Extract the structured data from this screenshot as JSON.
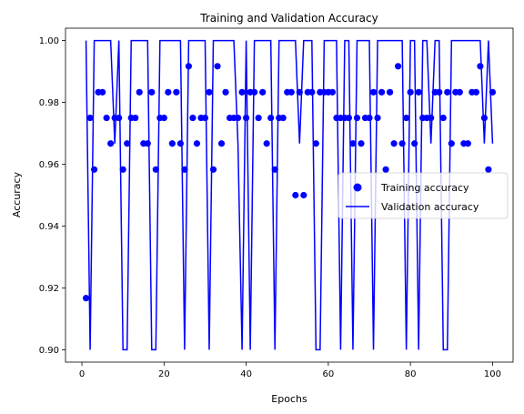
{
  "chart_data": {
    "type": "line",
    "title": "Training and Validation Accuracy",
    "xlabel": "Epochs",
    "ylabel": "Accuracy",
    "xlim": [
      -4,
      105
    ],
    "ylim": [
      0.896,
      1.004
    ],
    "xticks": [
      0,
      20,
      40,
      60,
      80,
      100
    ],
    "yticks": [
      0.9,
      0.92,
      0.94,
      0.96,
      0.98,
      1.0
    ],
    "ytick_labels": [
      "0.90",
      "0.92",
      "0.94",
      "0.96",
      "0.98",
      "1.00"
    ],
    "grid": false,
    "legend_position": "center-right",
    "x": [
      1,
      2,
      3,
      4,
      5,
      6,
      7,
      8,
      9,
      10,
      11,
      12,
      13,
      14,
      15,
      16,
      17,
      18,
      19,
      20,
      21,
      22,
      23,
      24,
      25,
      26,
      27,
      28,
      29,
      30,
      31,
      32,
      33,
      34,
      35,
      36,
      37,
      38,
      39,
      40,
      41,
      42,
      43,
      44,
      45,
      46,
      47,
      48,
      49,
      50,
      51,
      52,
      53,
      54,
      55,
      56,
      57,
      58,
      59,
      60,
      61,
      62,
      63,
      64,
      65,
      66,
      67,
      68,
      69,
      70,
      71,
      72,
      73,
      74,
      75,
      76,
      77,
      78,
      79,
      80,
      81,
      82,
      83,
      84,
      85,
      86,
      87,
      88,
      89,
      90,
      91,
      92,
      93,
      94,
      95,
      96,
      97,
      98,
      99,
      100
    ],
    "series": [
      {
        "name": "Training accuracy",
        "style": "points",
        "color": "#0000ff",
        "values": [
          0.9167,
          0.975,
          0.9583,
          0.9833,
          0.9833,
          0.975,
          0.9667,
          0.975,
          0.975,
          0.9583,
          0.9667,
          0.975,
          0.975,
          0.9833,
          0.9667,
          0.9667,
          0.9833,
          0.9583,
          0.975,
          0.975,
          0.9833,
          0.9667,
          0.9833,
          0.9667,
          0.9583,
          0.9917,
          0.975,
          0.9667,
          0.975,
          0.975,
          0.9833,
          0.9583,
          0.9917,
          0.9667,
          0.9833,
          0.975,
          0.975,
          0.975,
          0.9833,
          0.975,
          0.9833,
          0.9833,
          0.975,
          0.9833,
          0.9667,
          0.975,
          0.9583,
          0.975,
          0.975,
          0.9833,
          0.9833,
          0.95,
          0.9833,
          0.95,
          0.9833,
          0.9833,
          0.9667,
          0.9833,
          0.9833,
          0.9833,
          0.9833,
          0.975,
          0.975,
          0.975,
          0.975,
          0.9667,
          0.975,
          0.9667,
          0.975,
          0.975,
          0.9833,
          0.975,
          0.9833,
          0.9583,
          0.9833,
          0.9667,
          0.9917,
          0.9667,
          0.975,
          0.9833,
          0.9667,
          0.9833,
          0.975,
          0.975,
          0.975,
          0.9833,
          0.9833,
          0.975,
          0.9833,
          0.9667,
          0.9833,
          0.9833,
          0.9667,
          0.9667,
          0.9833,
          0.9833,
          0.9917,
          0.975,
          0.9583,
          0.9833
        ]
      },
      {
        "name": "Validation accuracy",
        "style": "line",
        "color": "#0000ff",
        "values": [
          1.0,
          0.9,
          1.0,
          1.0,
          1.0,
          1.0,
          1.0,
          0.9667,
          1.0,
          0.9,
          0.9,
          1.0,
          1.0,
          1.0,
          1.0,
          1.0,
          0.9,
          0.9,
          1.0,
          1.0,
          1.0,
          1.0,
          1.0,
          1.0,
          0.9,
          1.0,
          1.0,
          1.0,
          1.0,
          1.0,
          0.9,
          1.0,
          1.0,
          1.0,
          1.0,
          1.0,
          1.0,
          0.9667,
          0.9,
          1.0,
          0.9,
          1.0,
          1.0,
          1.0,
          1.0,
          1.0,
          0.9,
          1.0,
          1.0,
          1.0,
          1.0,
          1.0,
          0.9667,
          1.0,
          1.0,
          1.0,
          0.9,
          0.9,
          1.0,
          1.0,
          1.0,
          1.0,
          0.9,
          1.0,
          1.0,
          0.9,
          1.0,
          1.0,
          1.0,
          1.0,
          0.9,
          1.0,
          1.0,
          1.0,
          1.0,
          1.0,
          1.0,
          1.0,
          0.9,
          1.0,
          1.0,
          0.9,
          1.0,
          1.0,
          0.9667,
          1.0,
          1.0,
          0.9,
          0.9,
          1.0,
          1.0,
          1.0,
          1.0,
          1.0,
          1.0,
          1.0,
          1.0,
          0.9667,
          1.0,
          0.9667
        ]
      }
    ]
  }
}
